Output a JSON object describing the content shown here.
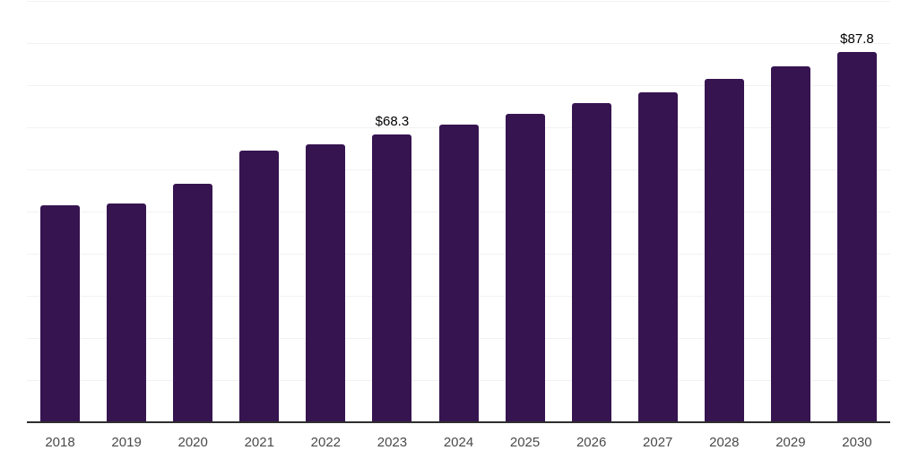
{
  "chart_data": {
    "type": "bar",
    "title": "",
    "xlabel": "",
    "ylabel": "",
    "categories": [
      "2018",
      "2019",
      "2020",
      "2021",
      "2022",
      "2023",
      "2024",
      "2025",
      "2026",
      "2027",
      "2028",
      "2029",
      "2030"
    ],
    "values": [
      51.4,
      51.9,
      56.6,
      64.4,
      65.9,
      68.3,
      70.7,
      73.2,
      75.8,
      78.4,
      81.4,
      84.5,
      87.8
    ],
    "data_labels": [
      "",
      "",
      "",
      "",
      "",
      "$68.3",
      "",
      "",
      "",
      "",
      "",
      "",
      "$87.8"
    ],
    "ylim": [
      0,
      100
    ],
    "gridline_step": 10,
    "grid": "horizontal",
    "legend": "none",
    "colors": {
      "bar": "#361450",
      "axis_line": "#2e2e2e",
      "gridline": "#f2f2f4",
      "tick_label": "#4a4a4a",
      "data_label": "#000000"
    }
  }
}
